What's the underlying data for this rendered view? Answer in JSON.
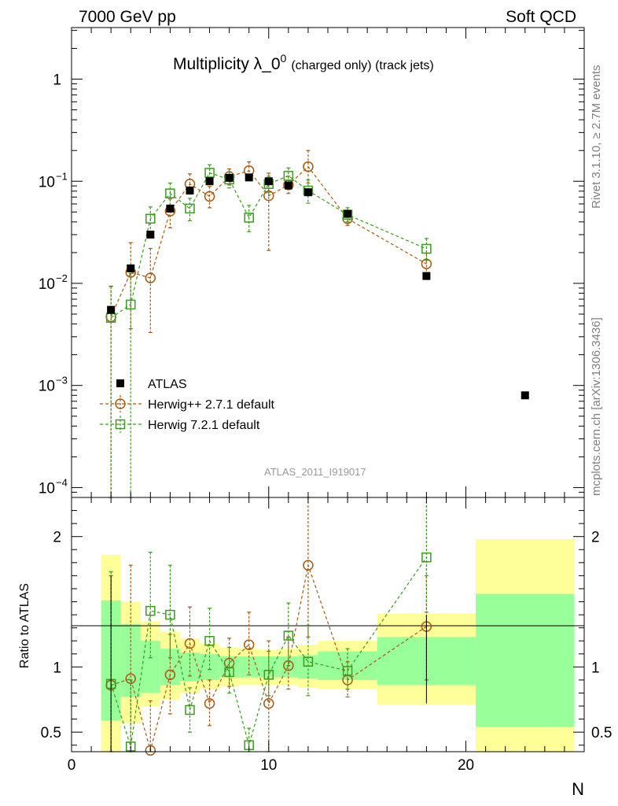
{
  "header": {
    "left": "7000 GeV pp",
    "right": "Soft QCD"
  },
  "side_labels": {
    "rivet": "Rivet 3.1.10, ≥ 2.7M events",
    "mcplots": "mcplots.cern.ch [arXiv:1306.3436]"
  },
  "chart_data": {
    "type": "scatter",
    "title": "Multiplicity λ_0",
    "title_sup": "0",
    "title_suffix": "(charged only) (track jets)",
    "watermark": "ATLAS_2011_I919017",
    "xlabel": "N",
    "ratio_ylabel": "Ratio to ATLAS",
    "xlim": [
      0,
      26
    ],
    "ylim": [
      8e-05,
      3.2
    ],
    "yscale": "log",
    "ratio_ylim": [
      0.35,
      2.3
    ],
    "x_ticks": [
      0,
      10,
      20
    ],
    "y_tick_labels": [
      {
        "value": 0.0001,
        "base": "10",
        "exp": "−4"
      },
      {
        "value": 0.001,
        "base": "10",
        "exp": "−3"
      },
      {
        "value": 0.01,
        "base": "10",
        "exp": "−2"
      },
      {
        "value": 0.1,
        "base": "10",
        "exp": "−1"
      },
      {
        "value": 1,
        "base": "1",
        "exp": ""
      }
    ],
    "ratio_ticks": [
      {
        "value": 0.5,
        "label": "0.5"
      },
      {
        "value": 1,
        "label": "1"
      },
      {
        "value": 2,
        "label": "2"
      }
    ],
    "legend": [
      {
        "name": "ATLAS",
        "color": "#000000",
        "marker": "filled-square"
      },
      {
        "name": "Herwig++ 2.7.1 default",
        "color": "#a65a14",
        "marker": "open-circle"
      },
      {
        "name": "Herwig 7.2.1 default",
        "color": "#3b9a1f",
        "marker": "open-square"
      }
    ],
    "data": {
      "name": "ATLAS",
      "points": [
        {
          "x": 2,
          "y": 0.0055
        },
        {
          "x": 3,
          "y": 0.014
        },
        {
          "x": 4,
          "y": 0.03
        },
        {
          "x": 5,
          "y": 0.054
        },
        {
          "x": 6,
          "y": 0.081
        },
        {
          "x": 7,
          "y": 0.1
        },
        {
          "x": 8,
          "y": 0.108
        },
        {
          "x": 9,
          "y": 0.109
        },
        {
          "x": 10,
          "y": 0.1
        },
        {
          "x": 11,
          "y": 0.091
        },
        {
          "x": 12,
          "y": 0.078
        },
        {
          "x": 14,
          "y": 0.048
        },
        {
          "x": 18,
          "y": 0.0118
        },
        {
          "x": 23,
          "y": 0.0008
        }
      ]
    },
    "series": [
      {
        "name": "Herwig++ 2.7.1 default",
        "color": "#a65a14",
        "points": [
          {
            "x": 2,
            "y": 0.0047,
            "lo": 1e-05,
            "hi": 0.0094
          },
          {
            "x": 3,
            "y": 0.0128,
            "lo": 0.0036,
            "hi": 0.025
          },
          {
            "x": 4,
            "y": 0.0113,
            "lo": 0.0033,
            "hi": 0.022
          },
          {
            "x": 5,
            "y": 0.051,
            "lo": 0.035,
            "hi": 0.067
          },
          {
            "x": 6,
            "y": 0.094,
            "lo": 0.075,
            "hi": 0.118
          },
          {
            "x": 7,
            "y": 0.071,
            "lo": 0.055,
            "hi": 0.089
          },
          {
            "x": 8,
            "y": 0.111,
            "lo": 0.092,
            "hi": 0.132
          },
          {
            "x": 9,
            "y": 0.127,
            "lo": 0.102,
            "hi": 0.155
          },
          {
            "x": 10,
            "y": 0.072,
            "lo": 0.021,
            "hi": 0.12
          },
          {
            "x": 11,
            "y": 0.092,
            "lo": 0.076,
            "hi": 0.112
          },
          {
            "x": 12,
            "y": 0.139,
            "lo": 0.096,
            "hi": 0.2
          },
          {
            "x": 14,
            "y": 0.043,
            "lo": 0.037,
            "hi": 0.05
          },
          {
            "x": 18,
            "y": 0.0155,
            "lo": 0.0114,
            "hi": 0.0198
          }
        ]
      },
      {
        "name": "Herwig 7.2.1 default",
        "color": "#3b9a1f",
        "points": [
          {
            "x": 2,
            "y": 0.0046,
            "lo": 1e-05,
            "hi": 0.0093
          },
          {
            "x": 3,
            "y": 0.0062,
            "lo": 1e-05,
            "hi": 0.0125
          },
          {
            "x": 4,
            "y": 0.043,
            "lo": 0.032,
            "hi": 0.056
          },
          {
            "x": 5,
            "y": 0.076,
            "lo": 0.058,
            "hi": 0.096
          },
          {
            "x": 6,
            "y": 0.054,
            "lo": 0.041,
            "hi": 0.068
          },
          {
            "x": 7,
            "y": 0.121,
            "lo": 0.098,
            "hi": 0.145
          },
          {
            "x": 8,
            "y": 0.104,
            "lo": 0.086,
            "hi": 0.124
          },
          {
            "x": 9,
            "y": 0.044,
            "lo": 0.032,
            "hi": 0.058
          },
          {
            "x": 10,
            "y": 0.094,
            "lo": 0.078,
            "hi": 0.112
          },
          {
            "x": 11,
            "y": 0.113,
            "lo": 0.092,
            "hi": 0.135
          },
          {
            "x": 12,
            "y": 0.081,
            "lo": 0.061,
            "hi": 0.103
          },
          {
            "x": 14,
            "y": 0.047,
            "lo": 0.04,
            "hi": 0.055
          },
          {
            "x": 18,
            "y": 0.0218,
            "lo": 0.0168,
            "hi": 0.0275
          }
        ]
      }
    ],
    "ratio_bands": [
      {
        "x0": 1.5,
        "x1": 2.5,
        "y_lo": 0.27,
        "y_hi": 1.86,
        "g_lo": 0.59,
        "g_hi": 1.51
      },
      {
        "x0": 2.5,
        "x1": 3.5,
        "y_lo": 0.57,
        "y_hi": 1.5,
        "g_lo": 0.77,
        "g_hi": 1.33
      },
      {
        "x0": 3.5,
        "x1": 4.5,
        "y_lo": 0.7,
        "y_hi": 1.35,
        "g_lo": 0.8,
        "g_hi": 1.2
      },
      {
        "x0": 4.5,
        "x1": 5.5,
        "y_lo": 0.75,
        "y_hi": 1.27,
        "g_lo": 0.86,
        "g_hi": 1.14
      },
      {
        "x0": 5.5,
        "x1": 6.5,
        "y_lo": 0.8,
        "y_hi": 1.22,
        "g_lo": 0.89,
        "g_hi": 1.11
      },
      {
        "x0": 6.5,
        "x1": 7.5,
        "y_lo": 0.83,
        "y_hi": 1.18,
        "g_lo": 0.9,
        "g_hi": 1.1
      },
      {
        "x0": 7.5,
        "x1": 8.5,
        "y_lo": 0.85,
        "y_hi": 1.15,
        "g_lo": 0.92,
        "g_hi": 1.08
      },
      {
        "x0": 8.5,
        "x1": 9.5,
        "y_lo": 0.86,
        "y_hi": 1.14,
        "g_lo": 0.92,
        "g_hi": 1.08
      },
      {
        "x0": 9.5,
        "x1": 10.5,
        "y_lo": 0.86,
        "y_hi": 1.13,
        "g_lo": 0.92,
        "g_hi": 1.08
      },
      {
        "x0": 10.5,
        "x1": 11.5,
        "y_lo": 0.86,
        "y_hi": 1.14,
        "g_lo": 0.92,
        "g_hi": 1.08
      },
      {
        "x0": 11.5,
        "x1": 12.5,
        "y_lo": 0.84,
        "y_hi": 1.17,
        "g_lo": 0.91,
        "g_hi": 1.09
      },
      {
        "x0": 12.5,
        "x1": 15.5,
        "y_lo": 0.83,
        "y_hi": 1.2,
        "g_lo": 0.9,
        "g_hi": 1.12
      },
      {
        "x0": 15.5,
        "x1": 20.5,
        "y_lo": 0.71,
        "y_hi": 1.41,
        "g_lo": 0.86,
        "g_hi": 1.23
      },
      {
        "x0": 20.5,
        "x1": 25.5,
        "y_lo": 0.3,
        "y_hi": 1.98,
        "g_lo": 0.54,
        "g_hi": 1.56
      }
    ],
    "ratio_series": [
      {
        "name": "Herwig++ 2.7.1 default",
        "color": "#a65a14",
        "points": [
          {
            "x": 2,
            "y": 0.86,
            "lo": 0.3,
            "hi": 1.7
          },
          {
            "x": 3,
            "y": 0.91,
            "lo": 0.3,
            "hi": 1.78
          },
          {
            "x": 4,
            "y": 0.36,
            "lo": 0.3,
            "hi": 0.74
          },
          {
            "x": 5,
            "y": 0.94,
            "lo": 0.64,
            "hi": 1.25
          },
          {
            "x": 6,
            "y": 1.18,
            "lo": 0.93,
            "hi": 1.46
          },
          {
            "x": 7,
            "y": 0.72,
            "lo": 0.55,
            "hi": 0.9
          },
          {
            "x": 8,
            "y": 1.03,
            "lo": 0.85,
            "hi": 1.22
          },
          {
            "x": 9,
            "y": 1.17,
            "lo": 0.94,
            "hi": 1.42
          },
          {
            "x": 10,
            "y": 0.72,
            "lo": 0.3,
            "hi": 1.2
          },
          {
            "x": 11,
            "y": 1.01,
            "lo": 0.83,
            "hi": 1.23
          },
          {
            "x": 12,
            "y": 1.78,
            "lo": 1.23,
            "hi": 2.58
          },
          {
            "x": 14,
            "y": 0.9,
            "lo": 0.77,
            "hi": 1.04
          },
          {
            "x": 18,
            "y": 1.31,
            "lo": 0.9,
            "hi": 1.7
          }
        ]
      },
      {
        "name": "Herwig 7.2.1 default",
        "color": "#3b9a1f",
        "points": [
          {
            "x": 2,
            "y": 0.87,
            "lo": 0.3,
            "hi": 1.73
          },
          {
            "x": 3,
            "y": 0.39,
            "lo": 0.3,
            "hi": 0.9
          },
          {
            "x": 4,
            "y": 1.43,
            "lo": 1.07,
            "hi": 1.88
          },
          {
            "x": 5,
            "y": 1.4,
            "lo": 1.07,
            "hi": 1.78
          },
          {
            "x": 6,
            "y": 0.67,
            "lo": 0.5,
            "hi": 0.84
          },
          {
            "x": 7,
            "y": 1.2,
            "lo": 0.98,
            "hi": 1.45
          },
          {
            "x": 8,
            "y": 0.96,
            "lo": 0.8,
            "hi": 1.15
          },
          {
            "x": 9,
            "y": 0.4,
            "lo": 0.3,
            "hi": 0.53
          },
          {
            "x": 10,
            "y": 0.94,
            "lo": 0.78,
            "hi": 1.12
          },
          {
            "x": 11,
            "y": 1.24,
            "lo": 1.01,
            "hi": 1.49
          },
          {
            "x": 12,
            "y": 1.04,
            "lo": 0.78,
            "hi": 1.32
          },
          {
            "x": 14,
            "y": 0.97,
            "lo": 0.83,
            "hi": 1.14
          },
          {
            "x": 18,
            "y": 1.84,
            "lo": 1.42,
            "hi": 2.33
          }
        ]
      }
    ]
  }
}
